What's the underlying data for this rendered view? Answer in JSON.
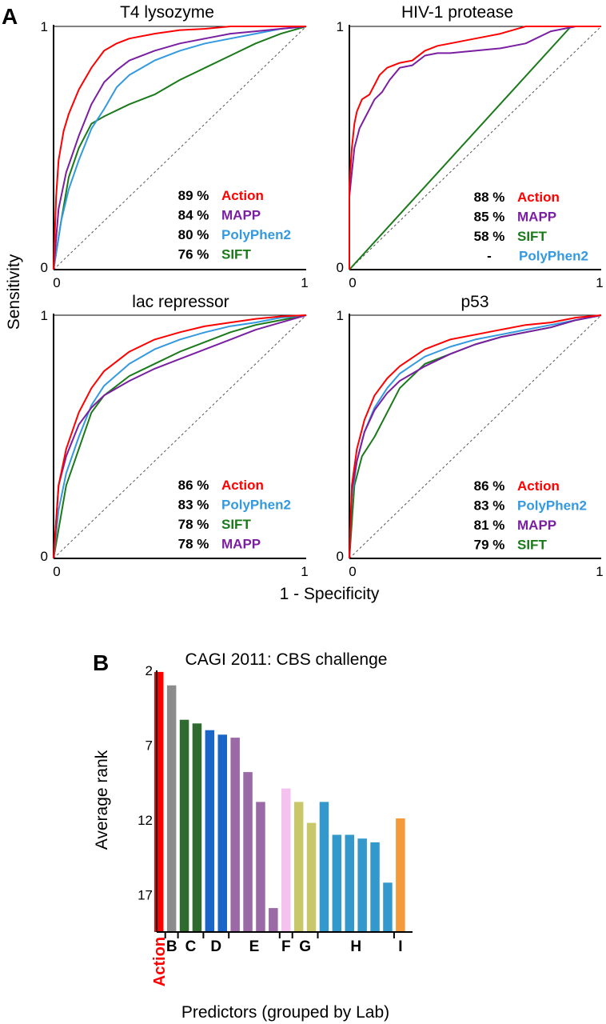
{
  "colors": {
    "Action": "#ff0000",
    "MAPP": "#7a1fa2",
    "PolyPhen2": "#3399e0",
    "SIFT": "#1a7a1a"
  },
  "panel_a": {
    "letter": "A",
    "ylabel": "Sensitivity",
    "xlabel": "1 - Specificity"
  },
  "panel_b": {
    "letter": "B"
  },
  "chart_data": [
    {
      "type": "line",
      "title": "T4 lysozyme",
      "xlim": [
        0,
        1
      ],
      "ylim": [
        0,
        1
      ],
      "x_ticks": [
        "0",
        "1"
      ],
      "y_ticks": [
        "0",
        "1"
      ],
      "series": [
        {
          "name": "Action",
          "auc": "89",
          "x": [
            0,
            0.01,
            0.02,
            0.04,
            0.06,
            0.1,
            0.15,
            0.2,
            0.25,
            0.3,
            0.4,
            0.5,
            0.6,
            0.7,
            0.8,
            0.9,
            1
          ],
          "y": [
            0,
            0.3,
            0.45,
            0.57,
            0.64,
            0.74,
            0.83,
            0.9,
            0.93,
            0.95,
            0.97,
            0.985,
            0.99,
            1,
            1,
            1,
            1
          ]
        },
        {
          "name": "MAPP",
          "auc": "84",
          "x": [
            0,
            0.02,
            0.05,
            0.1,
            0.15,
            0.2,
            0.25,
            0.3,
            0.4,
            0.5,
            0.6,
            0.7,
            0.8,
            0.9,
            1
          ],
          "y": [
            0,
            0.25,
            0.4,
            0.55,
            0.68,
            0.77,
            0.82,
            0.86,
            0.9,
            0.93,
            0.95,
            0.97,
            0.98,
            0.99,
            1
          ]
        },
        {
          "name": "PolyPhen2",
          "auc": "80",
          "x": [
            0,
            0.03,
            0.06,
            0.1,
            0.15,
            0.2,
            0.25,
            0.3,
            0.4,
            0.5,
            0.6,
            0.7,
            0.8,
            0.9,
            1
          ],
          "y": [
            0,
            0.2,
            0.33,
            0.45,
            0.58,
            0.66,
            0.75,
            0.8,
            0.86,
            0.9,
            0.93,
            0.95,
            0.97,
            0.99,
            1
          ]
        },
        {
          "name": "SIFT",
          "auc": "76",
          "x": [
            0,
            0.03,
            0.06,
            0.1,
            0.15,
            0.2,
            0.3,
            0.4,
            0.5,
            0.6,
            0.7,
            0.8,
            0.9,
            1
          ],
          "y": [
            0,
            0.2,
            0.38,
            0.5,
            0.6,
            0.63,
            0.68,
            0.72,
            0.78,
            0.83,
            0.88,
            0.93,
            0.97,
            1
          ]
        }
      ],
      "legend_order": [
        "Action",
        "MAPP",
        "PolyPhen2",
        "SIFT"
      ]
    },
    {
      "type": "line",
      "title": "HIV-1 protease",
      "xlim": [
        0,
        1
      ],
      "ylim": [
        0,
        1
      ],
      "x_ticks": [
        "0",
        "1"
      ],
      "y_ticks": [
        "0",
        "1"
      ],
      "series": [
        {
          "name": "Action",
          "auc": "88",
          "x": [
            0,
            0,
            0.01,
            0.02,
            0.03,
            0.05,
            0.08,
            0.1,
            0.12,
            0.15,
            0.2,
            0.25,
            0.3,
            0.35,
            0.4,
            0.5,
            0.55,
            0.6,
            0.7,
            0.8,
            0.9,
            1
          ],
          "y": [
            0,
            0.35,
            0.5,
            0.6,
            0.65,
            0.7,
            0.72,
            0.76,
            0.8,
            0.83,
            0.85,
            0.86,
            0.9,
            0.92,
            0.93,
            0.95,
            0.96,
            0.97,
            1,
            1,
            1,
            1
          ]
        },
        {
          "name": "MAPP",
          "auc": "85",
          "x": [
            0,
            0,
            0.01,
            0.02,
            0.04,
            0.06,
            0.08,
            0.1,
            0.13,
            0.16,
            0.2,
            0.25,
            0.3,
            0.35,
            0.4,
            0.5,
            0.6,
            0.7,
            0.8,
            0.9,
            1
          ],
          "y": [
            0,
            0.3,
            0.4,
            0.5,
            0.58,
            0.62,
            0.66,
            0.7,
            0.73,
            0.78,
            0.83,
            0.84,
            0.88,
            0.89,
            0.89,
            0.9,
            0.91,
            0.93,
            0.98,
            1,
            1
          ]
        },
        {
          "name": "SIFT",
          "auc": "58",
          "x": [
            0,
            0.88,
            1
          ],
          "y": [
            0,
            1,
            1
          ]
        },
        {
          "name": "PolyPhen2",
          "auc": "-",
          "x": [],
          "y": []
        }
      ],
      "legend_order": [
        "Action",
        "MAPP",
        "SIFT",
        "PolyPhen2"
      ]
    },
    {
      "type": "line",
      "title": "lac repressor",
      "xlim": [
        0,
        1
      ],
      "ylim": [
        0,
        1
      ],
      "x_ticks": [
        "0",
        "1"
      ],
      "y_ticks": [
        "0",
        "1"
      ],
      "series": [
        {
          "name": "Action",
          "auc": "86",
          "x": [
            0,
            0.02,
            0.05,
            0.1,
            0.15,
            0.2,
            0.3,
            0.4,
            0.5,
            0.6,
            0.7,
            0.8,
            0.9,
            1
          ],
          "y": [
            0,
            0.3,
            0.45,
            0.6,
            0.7,
            0.77,
            0.85,
            0.9,
            0.93,
            0.955,
            0.97,
            0.985,
            0.995,
            1
          ]
        },
        {
          "name": "PolyPhen2",
          "auc": "83",
          "x": [
            0,
            0.02,
            0.05,
            0.1,
            0.15,
            0.2,
            0.3,
            0.4,
            0.5,
            0.6,
            0.7,
            0.8,
            0.9,
            1
          ],
          "y": [
            0,
            0.2,
            0.35,
            0.5,
            0.63,
            0.71,
            0.8,
            0.86,
            0.9,
            0.93,
            0.955,
            0.97,
            0.99,
            1
          ]
        },
        {
          "name": "SIFT",
          "auc": "78",
          "x": [
            0,
            0.05,
            0.1,
            0.15,
            0.2,
            0.3,
            0.4,
            0.5,
            0.6,
            0.7,
            0.8,
            0.9,
            1
          ],
          "y": [
            0,
            0.3,
            0.45,
            0.6,
            0.67,
            0.75,
            0.8,
            0.85,
            0.89,
            0.93,
            0.96,
            0.98,
            1
          ]
        },
        {
          "name": "MAPP",
          "auc": "78",
          "x": [
            0,
            0.02,
            0.05,
            0.1,
            0.15,
            0.2,
            0.3,
            0.4,
            0.5,
            0.6,
            0.7,
            0.8,
            0.9,
            1
          ],
          "y": [
            0,
            0.3,
            0.42,
            0.55,
            0.62,
            0.67,
            0.73,
            0.78,
            0.82,
            0.86,
            0.9,
            0.94,
            0.97,
            1
          ]
        }
      ],
      "legend_order": [
        "Action",
        "PolyPhen2",
        "SIFT",
        "MAPP"
      ]
    },
    {
      "type": "line",
      "title": "p53",
      "xlim": [
        0,
        1
      ],
      "ylim": [
        0,
        1
      ],
      "x_ticks": [
        "0",
        "1"
      ],
      "y_ticks": [
        "0",
        "1"
      ],
      "series": [
        {
          "name": "Action",
          "auc": "86",
          "x": [
            0,
            0.01,
            0.03,
            0.06,
            0.1,
            0.15,
            0.2,
            0.3,
            0.4,
            0.5,
            0.6,
            0.7,
            0.8,
            0.9,
            1
          ],
          "y": [
            0,
            0.3,
            0.45,
            0.57,
            0.67,
            0.74,
            0.79,
            0.86,
            0.9,
            0.92,
            0.94,
            0.96,
            0.97,
            0.99,
            1
          ]
        },
        {
          "name": "PolyPhen2",
          "auc": "83",
          "x": [
            0,
            0.01,
            0.03,
            0.06,
            0.1,
            0.15,
            0.2,
            0.3,
            0.4,
            0.5,
            0.6,
            0.7,
            0.8,
            0.9,
            1
          ],
          "y": [
            0,
            0.25,
            0.4,
            0.52,
            0.62,
            0.7,
            0.76,
            0.83,
            0.87,
            0.9,
            0.92,
            0.94,
            0.96,
            0.98,
            1
          ]
        },
        {
          "name": "MAPP",
          "auc": "81",
          "x": [
            0,
            0.01,
            0.03,
            0.06,
            0.1,
            0.15,
            0.2,
            0.3,
            0.4,
            0.5,
            0.6,
            0.7,
            0.8,
            0.9,
            1
          ],
          "y": [
            0,
            0.28,
            0.4,
            0.52,
            0.61,
            0.68,
            0.73,
            0.79,
            0.84,
            0.88,
            0.91,
            0.93,
            0.95,
            0.98,
            1
          ]
        },
        {
          "name": "SIFT",
          "auc": "79",
          "x": [
            0,
            0.02,
            0.05,
            0.1,
            0.15,
            0.2,
            0.3,
            0.4,
            0.5,
            0.6,
            0.7,
            0.8,
            0.9,
            1
          ],
          "y": [
            0,
            0.3,
            0.42,
            0.5,
            0.6,
            0.7,
            0.8,
            0.84,
            0.88,
            0.91,
            0.93,
            0.95,
            0.98,
            1
          ]
        }
      ],
      "legend_order": [
        "Action",
        "PolyPhen2",
        "MAPP",
        "SIFT"
      ]
    },
    {
      "type": "bar",
      "title": "CAGI 2011: CBS challenge",
      "ylabel": "Average rank",
      "xlabel": "Predictors (grouped by Lab)",
      "y_inverted": true,
      "ylim": [
        2,
        19.5
      ],
      "y_ticks": [
        2,
        7,
        12,
        17
      ],
      "bars": [
        {
          "group": "Action",
          "value": 2.1,
          "color": "#ff0000"
        },
        {
          "group": "B",
          "value": 3.0,
          "color": "#8c8c8c"
        },
        {
          "group": "C",
          "value": 5.3,
          "color": "#2f6b2f"
        },
        {
          "group": "C",
          "value": 5.55,
          "color": "#2f6b2f"
        },
        {
          "group": "D",
          "value": 6.0,
          "color": "#1a66c8"
        },
        {
          "group": "D",
          "value": 6.3,
          "color": "#1a66c8"
        },
        {
          "group": "E",
          "value": 6.5,
          "color": "#9b6aa6"
        },
        {
          "group": "E",
          "value": 8.8,
          "color": "#9b6aa6"
        },
        {
          "group": "E",
          "value": 10.8,
          "color": "#9b6aa6"
        },
        {
          "group": "E",
          "value": 17.9,
          "color": "#9b6aa6"
        },
        {
          "group": "F",
          "value": 9.9,
          "color": "#f5c2f0"
        },
        {
          "group": "G",
          "value": 10.8,
          "color": "#c8c86a"
        },
        {
          "group": "G",
          "value": 12.2,
          "color": "#c8c86a"
        },
        {
          "group": "H",
          "value": 10.8,
          "color": "#3399cc"
        },
        {
          "group": "H",
          "value": 13.0,
          "color": "#3399cc"
        },
        {
          "group": "H",
          "value": 13.0,
          "color": "#3399cc"
        },
        {
          "group": "H",
          "value": 13.25,
          "color": "#3399cc"
        },
        {
          "group": "H",
          "value": 13.5,
          "color": "#3399cc"
        },
        {
          "group": "H",
          "value": 16.2,
          "color": "#3399cc"
        },
        {
          "group": "I",
          "value": 11.9,
          "color": "#f59a3a"
        }
      ],
      "group_labels": [
        "Action",
        "B",
        "C",
        "D",
        "E",
        "F",
        "G",
        "H",
        "I"
      ]
    }
  ]
}
